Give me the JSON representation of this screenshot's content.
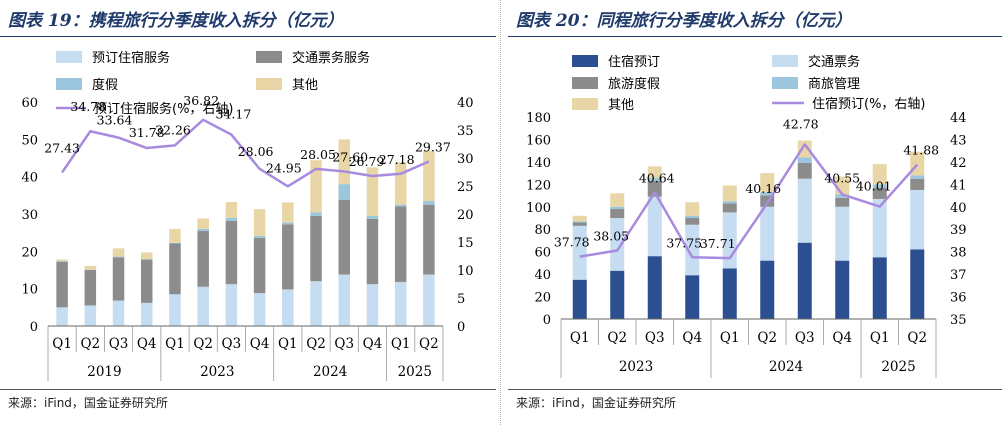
{
  "chart_data": [
    {
      "type": "bar",
      "stacked": true,
      "title": "图表 19：携程旅行分季度收入拆分（亿元）",
      "categories": [
        "Q1",
        "Q2",
        "Q3",
        "Q4",
        "Q1",
        "Q2",
        "Q3",
        "Q4",
        "Q1",
        "Q2",
        "Q3",
        "Q4",
        "Q1",
        "Q2"
      ],
      "year_groups": [
        {
          "label": "2019",
          "count": 4
        },
        {
          "label": "2023",
          "count": 4
        },
        {
          "label": "2024",
          "count": 4
        },
        {
          "label": "2025",
          "count": 2
        }
      ],
      "series": [
        {
          "name": "预订住宿服务",
          "color": "#c5dcf1",
          "values": [
            5,
            5.5,
            6.8,
            6.2,
            8.5,
            10.5,
            11.2,
            8.8,
            9.8,
            12,
            13.8,
            11.2,
            11.8,
            13.8
          ]
        },
        {
          "name": "交通票务服务",
          "color": "#8c8c8c",
          "values": [
            12.2,
            9.5,
            11.6,
            11.6,
            13.6,
            15,
            17,
            14.8,
            17.4,
            17.5,
            20,
            17.5,
            20.2,
            18.7
          ]
        },
        {
          "name": "度假",
          "color": "#9bc6dd",
          "values": [
            0.2,
            0.1,
            0.2,
            0.1,
            0.2,
            0.5,
            0.8,
            0.5,
            0.5,
            0.9,
            4.2,
            0.8,
            0.5,
            1
          ]
        },
        {
          "name": "其他",
          "color": "#e8d6a6",
          "values": [
            0.4,
            1,
            2.2,
            1.8,
            3.7,
            2.8,
            4.2,
            7.2,
            5.4,
            14,
            12,
            13,
            11.4,
            13.5
          ]
        }
      ],
      "line": {
        "name": "预订住宿服务(%，右轴)",
        "color": "#a88ade",
        "values": [
          27.43,
          34.78,
          33.64,
          31.78,
          32.26,
          36.82,
          34.17,
          28.06,
          24.95,
          28.05,
          27.6,
          26.79,
          27.18,
          29.37
        ]
      },
      "line_labels": [
        "27.43",
        "34.78",
        "33.64",
        "31.78",
        "32.26",
        "36.82",
        "34.17",
        "28.06",
        "24.95",
        "28.05",
        "27.60",
        "26.79",
        "27.18",
        "29.37"
      ],
      "ylim": [
        0,
        60
      ],
      "yticks": [
        0,
        10,
        20,
        30,
        40,
        50,
        60
      ],
      "y2lim": [
        0,
        40
      ],
      "y2ticks": [
        0,
        5,
        10,
        15,
        20,
        25,
        30,
        35,
        40
      ],
      "source": "来源：iFind，国金证券研究所"
    },
    {
      "type": "bar",
      "stacked": true,
      "title": "图表 20：同程旅行分季度收入拆分（亿元）",
      "categories": [
        "Q1",
        "Q2",
        "Q3",
        "Q4",
        "Q1",
        "Q2",
        "Q3",
        "Q4",
        "Q1",
        "Q2"
      ],
      "year_groups": [
        {
          "label": "2023",
          "count": 4
        },
        {
          "label": "2024",
          "count": 4
        },
        {
          "label": "2025",
          "count": 2
        }
      ],
      "series": [
        {
          "name": "住宿预订",
          "color": "#2c4f91",
          "values": [
            35,
            43,
            56,
            39,
            45,
            52,
            68,
            52,
            55,
            62
          ]
        },
        {
          "name": "交通票务",
          "color": "#c5dcf1",
          "values": [
            48,
            47,
            53,
            45,
            50,
            48,
            57,
            48,
            52,
            53
          ]
        },
        {
          "name": "旅游度假",
          "color": "#8c8c8c",
          "values": [
            3,
            8,
            14,
            6,
            8,
            10,
            14,
            8,
            10,
            10
          ]
        },
        {
          "name": "商旅管理",
          "color": "#9bc6dd",
          "values": [
            1,
            2,
            3,
            2,
            2,
            3,
            5,
            3,
            3,
            3
          ]
        },
        {
          "name": "其他",
          "color": "#e8d6a6",
          "values": [
            5,
            12,
            10,
            12,
            14,
            17,
            15,
            16,
            18,
            21
          ]
        }
      ],
      "line": {
        "name": "住宿预订(%，右轴)",
        "color": "#a88ade",
        "values": [
          37.78,
          38.05,
          40.64,
          37.75,
          37.71,
          40.16,
          42.78,
          40.55,
          40.01,
          41.88
        ]
      },
      "line_labels": [
        "37.78",
        "38.05",
        "40.64",
        "37.75",
        "37.71",
        "40.16",
        "42.78",
        "40.55",
        "40.01",
        "41.88"
      ],
      "ylim": [
        0,
        180
      ],
      "yticks": [
        0,
        20,
        40,
        60,
        80,
        100,
        120,
        140,
        160,
        180
      ],
      "y2lim": [
        35,
        44
      ],
      "y2ticks": [
        35,
        36,
        37,
        38,
        39,
        40,
        41,
        42,
        43,
        44
      ],
      "source": "来源：iFind，国金证券研究所"
    }
  ]
}
